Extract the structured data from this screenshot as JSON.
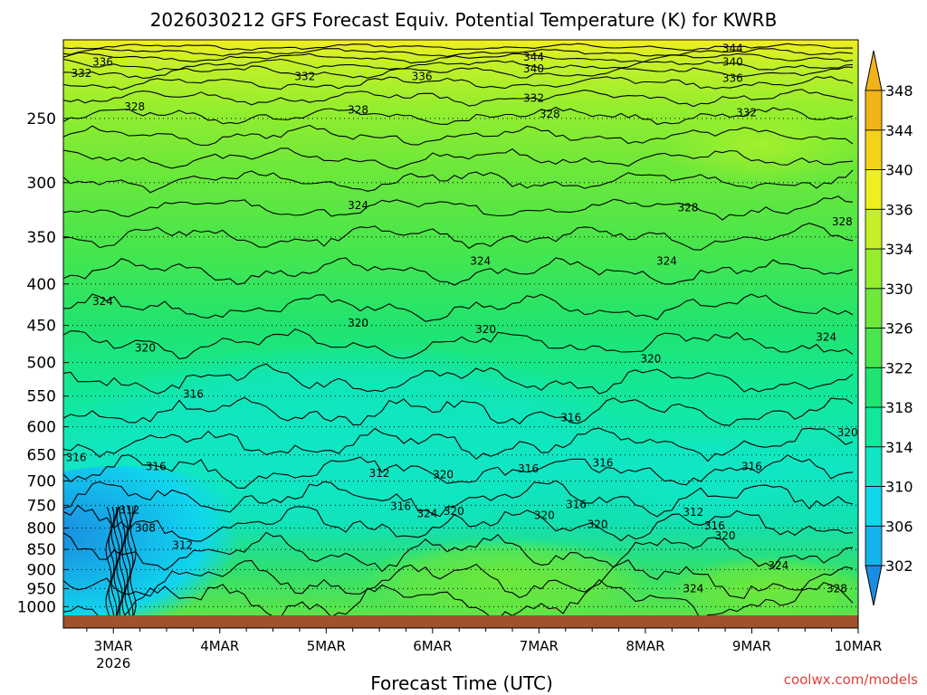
{
  "chart_data": {
    "type": "heatmap",
    "title": "2026030212 GFS Forecast Equiv. Potential Temperature (K) for KWRB",
    "xlabel": "Forecast Time (UTC)",
    "ylabel": "",
    "x_ticks": [
      {
        "label": "3MAR",
        "sub": "2026",
        "day": 3
      },
      {
        "label": "4MAR",
        "sub": "",
        "day": 4
      },
      {
        "label": "5MAR",
        "sub": "",
        "day": 5
      },
      {
        "label": "6MAR",
        "sub": "",
        "day": 6
      },
      {
        "label": "7MAR",
        "sub": "",
        "day": 7
      },
      {
        "label": "8MAR",
        "sub": "",
        "day": 8
      },
      {
        "label": "9MAR",
        "sub": "",
        "day": 9
      },
      {
        "label": "10MAR",
        "sub": "",
        "day": 10
      }
    ],
    "x_range_days": [
      2.53,
      10.0
    ],
    "y_ticks": [
      250,
      300,
      350,
      400,
      450,
      500,
      550,
      600,
      650,
      700,
      750,
      800,
      850,
      900,
      950,
      1000
    ],
    "y_range_hpa": [
      200,
      1025
    ],
    "y_scale": "log",
    "grid": "dotted horizontal at y ticks",
    "colorbar": {
      "levels": [
        302,
        306,
        310,
        314,
        318,
        322,
        326,
        330,
        334,
        336,
        340,
        344,
        348
      ],
      "colors": [
        "#1a8de0",
        "#14b4ea",
        "#10d6ec",
        "#10e6c4",
        "#12e89a",
        "#20e470",
        "#48e64c",
        "#6ee83a",
        "#94ee2e",
        "#c4f028",
        "#f0f020",
        "#f4d21c",
        "#f0b418"
      ],
      "extend": "both"
    },
    "contour_labels": [
      {
        "text": "336",
        "x": 2.9,
        "p": 213
      },
      {
        "text": "332",
        "x": 2.7,
        "p": 220
      },
      {
        "text": "332",
        "x": 4.8,
        "p": 222
      },
      {
        "text": "336",
        "x": 5.9,
        "p": 222
      },
      {
        "text": "344",
        "x": 6.95,
        "p": 210
      },
      {
        "text": "340",
        "x": 6.95,
        "p": 217
      },
      {
        "text": "344",
        "x": 8.82,
        "p": 205
      },
      {
        "text": "340",
        "x": 8.82,
        "p": 213
      },
      {
        "text": "336",
        "x": 8.82,
        "p": 223
      },
      {
        "text": "332",
        "x": 6.95,
        "p": 236
      },
      {
        "text": "328",
        "x": 7.1,
        "p": 247
      },
      {
        "text": "328",
        "x": 3.2,
        "p": 242
      },
      {
        "text": "328",
        "x": 5.3,
        "p": 244
      },
      {
        "text": "332",
        "x": 8.95,
        "p": 246
      },
      {
        "text": "324",
        "x": 5.3,
        "p": 320
      },
      {
        "text": "328",
        "x": 8.4,
        "p": 322
      },
      {
        "text": "328",
        "x": 9.85,
        "p": 335
      },
      {
        "text": "324",
        "x": 6.45,
        "p": 375
      },
      {
        "text": "324",
        "x": 8.2,
        "p": 375
      },
      {
        "text": "324",
        "x": 2.9,
        "p": 420
      },
      {
        "text": "320",
        "x": 5.3,
        "p": 447
      },
      {
        "text": "320",
        "x": 6.5,
        "p": 455
      },
      {
        "text": "324",
        "x": 9.7,
        "p": 465
      },
      {
        "text": "320",
        "x": 3.3,
        "p": 480
      },
      {
        "text": "320",
        "x": 8.05,
        "p": 495
      },
      {
        "text": "316",
        "x": 3.75,
        "p": 547
      },
      {
        "text": "316",
        "x": 7.3,
        "p": 585
      },
      {
        "text": "320",
        "x": 9.9,
        "p": 610
      },
      {
        "text": "316",
        "x": 2.65,
        "p": 655
      },
      {
        "text": "316",
        "x": 3.4,
        "p": 672
      },
      {
        "text": "316",
        "x": 7.6,
        "p": 665
      },
      {
        "text": "316",
        "x": 6.9,
        "p": 676
      },
      {
        "text": "316",
        "x": 9.0,
        "p": 672
      },
      {
        "text": "312",
        "x": 5.5,
        "p": 685
      },
      {
        "text": "320",
        "x": 6.1,
        "p": 687
      },
      {
        "text": "312",
        "x": 3.15,
        "p": 760
      },
      {
        "text": "316",
        "x": 5.7,
        "p": 752
      },
      {
        "text": "324",
        "x": 5.95,
        "p": 768
      },
      {
        "text": "320",
        "x": 6.2,
        "p": 763
      },
      {
        "text": "316",
        "x": 7.35,
        "p": 748
      },
      {
        "text": "320",
        "x": 7.05,
        "p": 772
      },
      {
        "text": "312",
        "x": 8.45,
        "p": 765
      },
      {
        "text": "308",
        "x": 3.3,
        "p": 800
      },
      {
        "text": "316",
        "x": 8.65,
        "p": 795
      },
      {
        "text": "320",
        "x": 7.55,
        "p": 792
      },
      {
        "text": "320",
        "x": 8.75,
        "p": 818
      },
      {
        "text": "312",
        "x": 3.65,
        "p": 840
      },
      {
        "text": "324",
        "x": 9.25,
        "p": 890
      },
      {
        "text": "324",
        "x": 8.45,
        "p": 950
      },
      {
        "text": "328",
        "x": 9.8,
        "p": 950
      }
    ]
  },
  "credit": "coolwx.com/models"
}
